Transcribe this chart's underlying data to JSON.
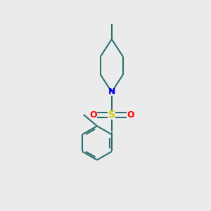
{
  "bg_color": "#ebebeb",
  "bond_color": "#2d6e6e",
  "N_color": "#0000ee",
  "S_color": "#cccc00",
  "O_color": "#ff0000",
  "line_width": 1.5,
  "font_size_N": 9,
  "font_size_S": 10,
  "font_size_O": 9,
  "fig_size": [
    3.0,
    3.0
  ],
  "dpi": 100,
  "xlim": [
    0,
    10
  ],
  "ylim": [
    0,
    10
  ]
}
